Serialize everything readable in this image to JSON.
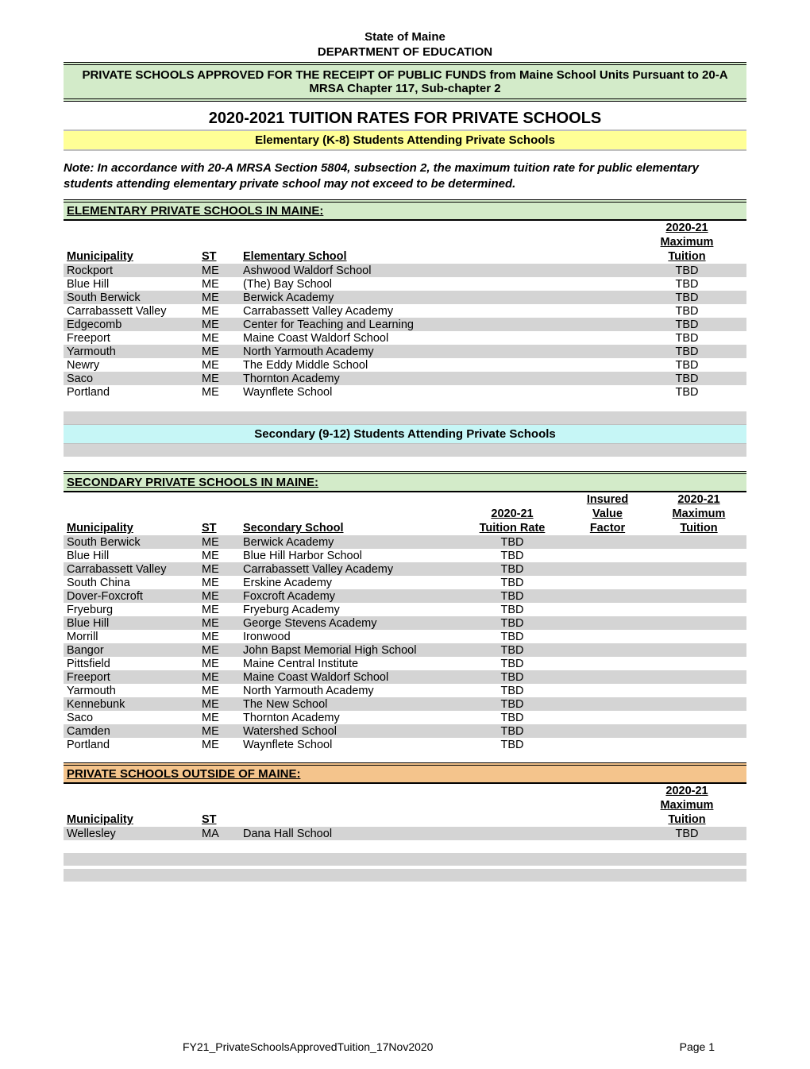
{
  "colors": {
    "green_bg": "#d3ebc9",
    "yellow_bg": "#ffff96",
    "cyan_bg": "#c6f6f6",
    "orange_bg": "#f4c48c",
    "shade_bg": "#d4d4d4",
    "border": "#000000"
  },
  "header": {
    "state": "State of Maine",
    "dept": "DEPARTMENT OF EDUCATION",
    "banner": "PRIVATE SCHOOLS APPROVED FOR THE RECEIPT OF PUBLIC FUNDS from Maine School Units Pursuant to 20-A MRSA Chapter 117, Sub-chapter 2",
    "title": "2020-2021  TUITION RATES FOR PRIVATE SCHOOLS",
    "elementary_band": "Elementary (K-8) Students Attending Private Schools",
    "note": "Note:  In accordance with 20-A MRSA Section 5804, subsection 2, the maximum tuition rate for public elementary students attending elementary private school may not exceed to be determined."
  },
  "elementary": {
    "section_title": "ELEMENTARY PRIVATE SCHOOLS IN MAINE:",
    "columns": {
      "muni": "Municipality",
      "st": "ST",
      "school": "Elementary School",
      "tuition_header_1": "2020-21",
      "tuition_header_2": "Maximum",
      "tuition_header_3": "Tuition"
    },
    "rows": [
      {
        "muni": "Rockport",
        "st": "ME",
        "school": "Ashwood Waldorf School",
        "tuition": "TBD"
      },
      {
        "muni": "Blue Hill",
        "st": "ME",
        "school": "(The) Bay School",
        "tuition": "TBD"
      },
      {
        "muni": "South Berwick",
        "st": "ME",
        "school": "Berwick Academy",
        "tuition": "TBD"
      },
      {
        "muni": "Carrabassett Valley",
        "st": "ME",
        "school": "Carrabassett Valley Academy",
        "tuition": "TBD"
      },
      {
        "muni": "Edgecomb",
        "st": "ME",
        "school": "Center for Teaching and Learning",
        "tuition": "TBD"
      },
      {
        "muni": "Freeport",
        "st": "ME",
        "school": "Maine Coast Waldorf School",
        "tuition": "TBD"
      },
      {
        "muni": "Yarmouth",
        "st": "ME",
        "school": "North Yarmouth Academy",
        "tuition": "TBD"
      },
      {
        "muni": "Newry",
        "st": "ME",
        "school": "The Eddy Middle School",
        "tuition": "TBD"
      },
      {
        "muni": "Saco",
        "st": "ME",
        "school": "Thornton Academy",
        "tuition": "TBD"
      },
      {
        "muni": "Portland",
        "st": "ME",
        "school": "Waynflete School",
        "tuition": "TBD"
      }
    ]
  },
  "secondary_band": "Secondary (9-12) Students Attending Private Schools",
  "secondary": {
    "section_title": "SECONDARY PRIVATE SCHOOLS IN MAINE:",
    "columns": {
      "muni": "Municipality",
      "st": "ST",
      "school": "Secondary School",
      "rate_header_1": "2020-21",
      "rate_header_2": "Tuition Rate",
      "factor_header_1": "Insured",
      "factor_header_2": "Value",
      "factor_header_3": "Factor",
      "max_header_1": "2020-21",
      "max_header_2": "Maximum",
      "max_header_3": "Tuition"
    },
    "rows": [
      {
        "muni": "South Berwick",
        "st": "ME",
        "school": "Berwick Academy",
        "rate": "TBD"
      },
      {
        "muni": "Blue Hill",
        "st": "ME",
        "school": "Blue Hill Harbor School",
        "rate": "TBD"
      },
      {
        "muni": "Carrabassett Valley",
        "st": "ME",
        "school": "Carrabassett Valley Academy",
        "rate": "TBD"
      },
      {
        "muni": "South China",
        "st": "ME",
        "school": "Erskine Academy",
        "rate": "TBD"
      },
      {
        "muni": "Dover-Foxcroft",
        "st": "ME",
        "school": "Foxcroft Academy",
        "rate": "TBD"
      },
      {
        "muni": "Fryeburg",
        "st": "ME",
        "school": "Fryeburg Academy",
        "rate": "TBD"
      },
      {
        "muni": "Blue Hill",
        "st": "ME",
        "school": "George Stevens Academy",
        "rate": "TBD"
      },
      {
        "muni": "Morrill",
        "st": "ME",
        "school": "Ironwood",
        "rate": "TBD"
      },
      {
        "muni": "Bangor",
        "st": "ME",
        "school": "John Bapst Memorial High School",
        "rate": "TBD"
      },
      {
        "muni": "Pittsfield",
        "st": "ME",
        "school": "Maine Central Institute",
        "rate": "TBD"
      },
      {
        "muni": "Freeport",
        "st": "ME",
        "school": "Maine Coast Waldorf School",
        "rate": "TBD"
      },
      {
        "muni": "Yarmouth",
        "st": "ME",
        "school": "North Yarmouth Academy",
        "rate": "TBD"
      },
      {
        "muni": "Kennebunk",
        "st": "ME",
        "school": "The New School",
        "rate": "TBD"
      },
      {
        "muni": "Saco",
        "st": "ME",
        "school": "Thornton Academy",
        "rate": "TBD"
      },
      {
        "muni": "Camden",
        "st": "ME",
        "school": "Watershed School",
        "rate": "TBD"
      },
      {
        "muni": "Portland",
        "st": "ME",
        "school": "Waynflete School",
        "rate": "TBD"
      }
    ]
  },
  "outside": {
    "section_title": "PRIVATE SCHOOLS OUTSIDE OF MAINE:",
    "columns": {
      "muni": "Municipality",
      "st": "ST",
      "tuition_header_1": "2020-21",
      "tuition_header_2": "Maximum",
      "tuition_header_3": "Tuition"
    },
    "rows": [
      {
        "muni": "Wellesley",
        "st": "MA",
        "school": "Dana Hall School",
        "tuition": "TBD"
      }
    ]
  },
  "footer": {
    "filename": "FY21_PrivateSchoolsApprovedTuition_17Nov2020",
    "page": "Page 1"
  }
}
